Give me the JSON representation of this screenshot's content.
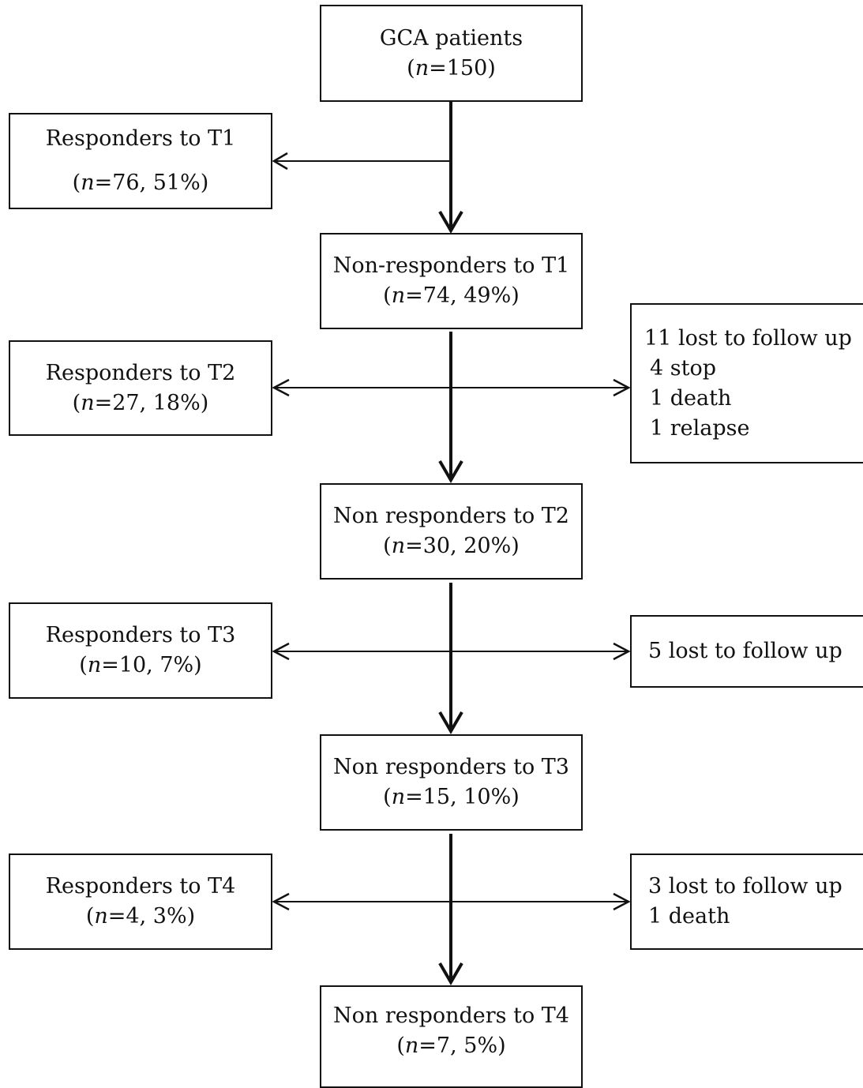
{
  "boxes": {
    "gca": {
      "title": "GCA patients",
      "pre": "(",
      "n": "n",
      "post": "=150)"
    },
    "resp1": {
      "title": "Responders to T1",
      "pre": "(",
      "n": "n",
      "post": "=76, 51%)"
    },
    "non1": {
      "title": "Non-responders to T1",
      "pre": "(",
      "n": "n",
      "post": "=74, 49%)"
    },
    "resp2": {
      "title": "Responders to T2",
      "pre": "(",
      "n": "n",
      "post": "=27, 18%)"
    },
    "lost2": {
      "lines": [
        "11 lost to follow up",
        "4 stop",
        "1 death",
        "1 relapse"
      ]
    },
    "non2": {
      "title": "Non responders to T2",
      "pre": "(",
      "n": "n",
      "post": "=30, 20%)"
    },
    "resp3": {
      "title": "Responders to T3",
      "pre": "(",
      "n": "n",
      "post": "=10, 7%)"
    },
    "lost3": {
      "lines": [
        "5 lost to follow up"
      ]
    },
    "non3": {
      "title": "Non responders to T3",
      "pre": "(",
      "n": "n",
      "post": "=15, 10%)"
    },
    "resp4": {
      "title": "Responders to T4",
      "pre": "(",
      "n": "n",
      "post": "=4, 3%)"
    },
    "lost4": {
      "lines": [
        "3 lost to follow up",
        "1 death"
      ]
    },
    "non4": {
      "title": "Non responders to T4",
      "pre": "(",
      "n": "n",
      "post": "=7, 5%)"
    }
  }
}
